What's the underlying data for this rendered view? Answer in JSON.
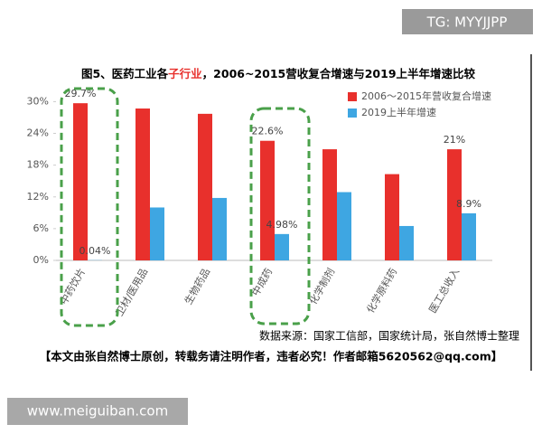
{
  "chart_data": {
    "type": "bar",
    "title_parts": [
      "图5、医药工业各",
      "子行业",
      "，2006~2015营收复合增速与2019上半年增速比较"
    ],
    "categories": [
      "中药饮片",
      "卫材/医用品",
      "生物药品",
      "中成药",
      "化学制剂",
      "化学原料药",
      "医工总收入"
    ],
    "series": [
      {
        "name": "2006～2015年营收复合增速",
        "color": "#e8302c",
        "values": [
          29.7,
          28.7,
          27.7,
          22.6,
          21.0,
          16.3,
          21.0
        ],
        "value_labels": [
          "29.7%",
          null,
          null,
          "22.6%",
          null,
          null,
          "21%"
        ]
      },
      {
        "name": "2019上半年增速",
        "color": "#3ea6e2",
        "values": [
          0.04,
          10.0,
          11.8,
          4.98,
          12.9,
          6.5,
          8.9
        ],
        "value_labels": [
          "0.04%",
          null,
          null,
          "4.98%",
          null,
          null,
          "8.9%"
        ]
      }
    ],
    "ylim": [
      0,
      32
    ],
    "yticks": [
      {
        "value": 0,
        "label": "0%"
      },
      {
        "value": 6,
        "label": "6%"
      },
      {
        "value": 12,
        "label": "12%"
      },
      {
        "value": 18,
        "label": "18%"
      },
      {
        "value": 24,
        "label": "24%"
      },
      {
        "value": 30,
        "label": "30%"
      }
    ],
    "source": "数据来源：国家工信部，国家统计局，张自然博士整理",
    "notice": "【本文由张自然博士原创，转载务请注明作者，违者必究！作者邮箱5620562@qq.com】"
  },
  "watermark": {
    "badge": "TG: MYYJJPP",
    "site": "www.meiguiban.com"
  }
}
